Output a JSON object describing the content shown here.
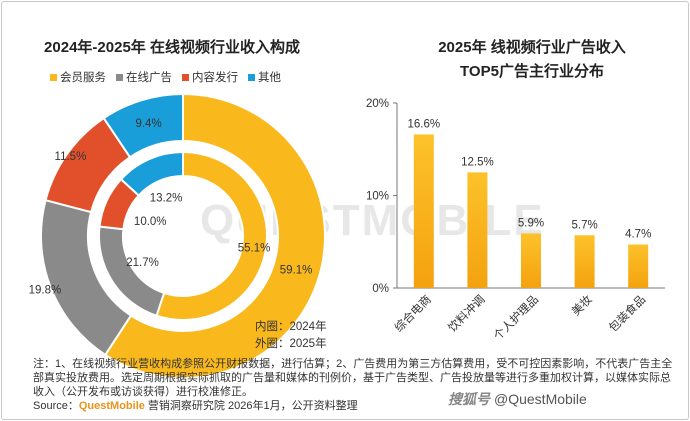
{
  "left_chart": {
    "title": "2024年-2025年 在线视频行业收入构成",
    "legend": [
      {
        "label": "会员服务",
        "color": "#f9b81c"
      },
      {
        "label": "在线广告",
        "color": "#8a8a8a"
      },
      {
        "label": "内容发行",
        "color": "#e2502b"
      },
      {
        "label": "其他",
        "color": "#1a9ed9"
      }
    ],
    "inner_note": "内圈：2024年",
    "outer_note": "外圈：2025年"
  },
  "right_chart": {
    "title_line1": "2025年 线视频行业广告收入",
    "title_line2": "TOP5广告主行业分布"
  },
  "chart_data": [
    {
      "type": "pie",
      "title": "2024年-2025年 在线视频行业收入构成",
      "categories": [
        "会员服务",
        "在线广告",
        "内容发行",
        "其他"
      ],
      "series": [
        {
          "name": "内圈：2024年",
          "values": [
            55.1,
            21.7,
            10.0,
            13.2
          ],
          "labels": [
            "55.1%",
            "21.7%",
            "10.0%",
            "13.2%"
          ]
        },
        {
          "name": "外圈：2025年",
          "values": [
            59.1,
            19.8,
            11.5,
            9.4
          ],
          "labels": [
            "59.1%",
            "19.8%",
            "11.5%",
            "9.4%"
          ]
        }
      ],
      "colors": [
        "#f9b81c",
        "#8a8a8a",
        "#e2502b",
        "#1a9ed9"
      ],
      "legend_position": "top-left"
    },
    {
      "type": "bar",
      "title": "2025年 线视频行业广告收入 TOP5广告主行业分布",
      "categories": [
        "综合电商",
        "饮料冲调",
        "个人护理品",
        "美妆",
        "包装食品"
      ],
      "values": [
        16.6,
        12.5,
        5.9,
        5.7,
        4.7
      ],
      "value_labels": [
        "16.6%",
        "12.5%",
        "5.9%",
        "5.7%",
        "4.7%"
      ],
      "ylim": [
        0,
        20
      ],
      "yticks": [
        "0%",
        "10%",
        "20%"
      ],
      "color": "#f9b81c",
      "grid": false
    }
  ],
  "footnote": "注：1、在线视频行业营收构成参照公开财报数据，进行估算；2、广告费用为第三方估算费用，受不可控因素影响，不代表广告主全部真实投放费用。选定周期根据实际抓取的广告量和媒体的刊例价，基于广告类型、广告投放量等进行多重加权计算，以媒体实际总收入（公开发布或访谈获得）进行校准修正。",
  "source": {
    "prefix": "Source：",
    "brand": "QuestMobile",
    "rest": " 营销洞察研究院 2026年1月，公开资料整理"
  },
  "watermark": {
    "cn": "搜狐号",
    "handle": "@QuestMobile"
  },
  "background_logo": "QUESTMOBILE"
}
